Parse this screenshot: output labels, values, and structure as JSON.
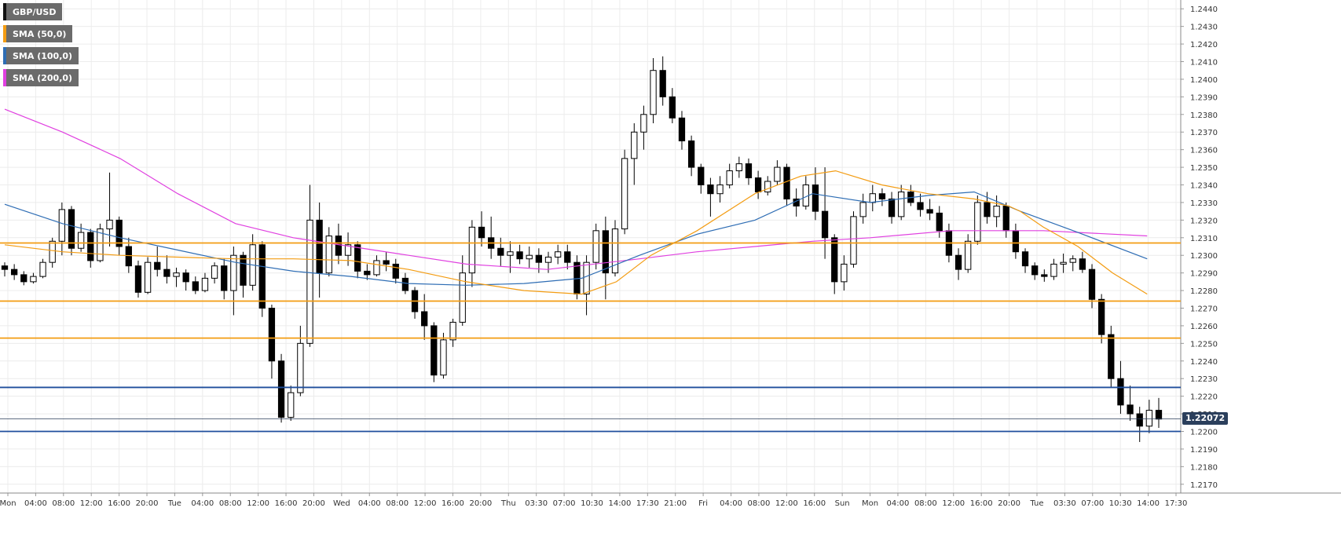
{
  "chart_data": {
    "type": "candlestick",
    "symbol": "GBP/USD",
    "legend": [
      {
        "label": "GBP/USD",
        "color": "#111111"
      },
      {
        "label": "SMA (50,0)",
        "color": "#f39c12"
      },
      {
        "label": "SMA (100,0)",
        "color": "#2e6db4"
      },
      {
        "label": "SMA (200,0)",
        "color": "#e040e0"
      }
    ],
    "ylim": [
      1.2165,
      1.2445
    ],
    "y_ticks": [
      "1.2170",
      "1.2180",
      "1.2190",
      "1.2200",
      "1.2210",
      "1.2220",
      "1.2230",
      "1.2240",
      "1.2250",
      "1.2260",
      "1.2270",
      "1.2280",
      "1.2290",
      "1.2300",
      "1.2310",
      "1.2320",
      "1.2330",
      "1.2340",
      "1.2350",
      "1.2360",
      "1.2370",
      "1.2380",
      "1.2390",
      "1.2400",
      "1.2410",
      "1.2420",
      "1.2430",
      "1.2440"
    ],
    "x_ticks": [
      "Mon",
      "04:00",
      "08:00",
      "12:00",
      "16:00",
      "20:00",
      "Tue",
      "04:00",
      "08:00",
      "12:00",
      "16:00",
      "20:00",
      "Wed",
      "04:00",
      "08:00",
      "12:00",
      "16:00",
      "20:00",
      "Thu",
      "03:30",
      "07:00",
      "10:30",
      "14:00",
      "17:30",
      "21:00",
      "Fri",
      "04:00",
      "08:00",
      "12:00",
      "16:00",
      "Sun",
      "Mon",
      "04:00",
      "08:00",
      "12:00",
      "16:00",
      "20:00",
      "Tue",
      "03:30",
      "07:00",
      "10:30",
      "14:00",
      "17:30"
    ],
    "current_price": "1.22072",
    "horizontal_levels": [
      {
        "value": 1.2307,
        "color": "#f39c12"
      },
      {
        "value": 1.2274,
        "color": "#f39c12"
      },
      {
        "value": 1.2253,
        "color": "#f39c12"
      },
      {
        "value": 1.2225,
        "color": "#1f4e9c"
      },
      {
        "value": 1.22,
        "color": "#1f4e9c"
      }
    ],
    "candles": [
      [
        1.2294,
        1.2296,
        1.2288,
        1.2292
      ],
      [
        1.2292,
        1.2295,
        1.2286,
        1.2289
      ],
      [
        1.2289,
        1.2291,
        1.2283,
        1.2285
      ],
      [
        1.2285,
        1.229,
        1.2284,
        1.2288
      ],
      [
        1.2288,
        1.2298,
        1.2287,
        1.2296
      ],
      [
        1.2296,
        1.231,
        1.2293,
        1.2308
      ],
      [
        1.2308,
        1.233,
        1.23,
        1.2326
      ],
      [
        1.2326,
        1.2328,
        1.23,
        1.2304
      ],
      [
        1.2304,
        1.2318,
        1.2302,
        1.2313
      ],
      [
        1.2313,
        1.2315,
        1.2293,
        1.2297
      ],
      [
        1.2297,
        1.2318,
        1.2296,
        1.2315
      ],
      [
        1.2315,
        1.2347,
        1.2305,
        1.232
      ],
      [
        1.232,
        1.2322,
        1.23,
        1.2305
      ],
      [
        1.2305,
        1.231,
        1.229,
        1.2294
      ],
      [
        1.2294,
        1.2297,
        1.2276,
        1.2279
      ],
      [
        1.2279,
        1.2299,
        1.2278,
        1.2296
      ],
      [
        1.2296,
        1.2305,
        1.2288,
        1.2292
      ],
      [
        1.2292,
        1.23,
        1.2284,
        1.2288
      ],
      [
        1.2288,
        1.2293,
        1.2282,
        1.229
      ],
      [
        1.229,
        1.2292,
        1.228,
        1.2285
      ],
      [
        1.2285,
        1.2288,
        1.2278,
        1.228
      ],
      [
        1.228,
        1.229,
        1.2279,
        1.2287
      ],
      [
        1.2287,
        1.2296,
        1.2284,
        1.2294
      ],
      [
        1.2294,
        1.2298,
        1.2275,
        1.228
      ],
      [
        1.228,
        1.2305,
        1.2266,
        1.23
      ],
      [
        1.23,
        1.2302,
        1.2276,
        1.2283
      ],
      [
        1.2283,
        1.2312,
        1.228,
        1.2306
      ],
      [
        1.2306,
        1.2308,
        1.2265,
        1.227
      ],
      [
        1.227,
        1.2272,
        1.223,
        1.224
      ],
      [
        1.224,
        1.2244,
        1.2205,
        1.2208
      ],
      [
        1.2208,
        1.2226,
        1.2206,
        1.2222
      ],
      [
        1.2222,
        1.226,
        1.222,
        1.225
      ],
      [
        1.225,
        1.234,
        1.2248,
        1.232
      ],
      [
        1.232,
        1.233,
        1.2276,
        1.229
      ],
      [
        1.229,
        1.2316,
        1.2288,
        1.2311
      ],
      [
        1.2311,
        1.2318,
        1.2295,
        1.23
      ],
      [
        1.23,
        1.2313,
        1.2294,
        1.2306
      ],
      [
        1.2306,
        1.2308,
        1.2287,
        1.2291
      ],
      [
        1.2291,
        1.2295,
        1.2286,
        1.2289
      ],
      [
        1.2289,
        1.23,
        1.2288,
        1.2297
      ],
      [
        1.2297,
        1.2302,
        1.2291,
        1.2295
      ],
      [
        1.2295,
        1.2298,
        1.2284,
        1.2287
      ],
      [
        1.2287,
        1.229,
        1.2278,
        1.228
      ],
      [
        1.228,
        1.2282,
        1.2264,
        1.2268
      ],
      [
        1.2268,
        1.2278,
        1.2252,
        1.226
      ],
      [
        1.226,
        1.2262,
        1.2228,
        1.2232
      ],
      [
        1.2232,
        1.2256,
        1.223,
        1.2252
      ],
      [
        1.2252,
        1.2264,
        1.2248,
        1.2262
      ],
      [
        1.2262,
        1.23,
        1.226,
        1.229
      ],
      [
        1.229,
        1.232,
        1.2282,
        1.2316
      ],
      [
        1.2316,
        1.2325,
        1.2305,
        1.231
      ],
      [
        1.231,
        1.2322,
        1.2298,
        1.2304
      ],
      [
        1.2304,
        1.231,
        1.2294,
        1.23
      ],
      [
        1.23,
        1.2308,
        1.229,
        1.2302
      ],
      [
        1.2302,
        1.2306,
        1.2295,
        1.2298
      ],
      [
        1.2298,
        1.2305,
        1.2293,
        1.23
      ],
      [
        1.23,
        1.2304,
        1.229,
        1.2296
      ],
      [
        1.2296,
        1.2302,
        1.229,
        1.2299
      ],
      [
        1.2299,
        1.2306,
        1.2295,
        1.2302
      ],
      [
        1.2302,
        1.2306,
        1.2292,
        1.2296
      ],
      [
        1.2296,
        1.23,
        1.2275,
        1.2278
      ],
      [
        1.2278,
        1.23,
        1.2266,
        1.2296
      ],
      [
        1.2296,
        1.2318,
        1.2292,
        1.2314
      ],
      [
        1.2314,
        1.2322,
        1.2275,
        1.229
      ],
      [
        1.229,
        1.232,
        1.2288,
        1.2315
      ],
      [
        1.2315,
        1.236,
        1.2312,
        1.2355
      ],
      [
        1.2355,
        1.2375,
        1.234,
        1.237
      ],
      [
        1.237,
        1.2385,
        1.236,
        1.238
      ],
      [
        1.238,
        1.2412,
        1.2375,
        1.2405
      ],
      [
        1.2405,
        1.2413,
        1.2385,
        1.239
      ],
      [
        1.239,
        1.2395,
        1.2375,
        1.2378
      ],
      [
        1.2378,
        1.2382,
        1.236,
        1.2365
      ],
      [
        1.2365,
        1.2368,
        1.2345,
        1.235
      ],
      [
        1.235,
        1.2352,
        1.2335,
        1.234
      ],
      [
        1.234,
        1.2344,
        1.2322,
        1.2335
      ],
      [
        1.2335,
        1.2345,
        1.233,
        1.234
      ],
      [
        1.234,
        1.2352,
        1.2338,
        1.2348
      ],
      [
        1.2348,
        1.2356,
        1.2344,
        1.2352
      ],
      [
        1.2352,
        1.2355,
        1.234,
        1.2344
      ],
      [
        1.2344,
        1.2348,
        1.2332,
        1.2336
      ],
      [
        1.2336,
        1.2345,
        1.2334,
        1.2342
      ],
      [
        1.2342,
        1.2354,
        1.234,
        1.235
      ],
      [
        1.235,
        1.2352,
        1.2328,
        1.2332
      ],
      [
        1.2332,
        1.2338,
        1.2322,
        1.2328
      ],
      [
        1.2328,
        1.2345,
        1.2326,
        1.234
      ],
      [
        1.234,
        1.235,
        1.232,
        1.2325
      ],
      [
        1.2325,
        1.235,
        1.2298,
        1.231
      ],
      [
        1.231,
        1.2312,
        1.2278,
        1.2285
      ],
      [
        1.2285,
        1.23,
        1.228,
        1.2295
      ],
      [
        1.2295,
        1.2325,
        1.2293,
        1.2322
      ],
      [
        1.2322,
        1.2335,
        1.2318,
        1.233
      ],
      [
        1.233,
        1.234,
        1.2325,
        1.2335
      ],
      [
        1.2335,
        1.2338,
        1.2328,
        1.2332
      ],
      [
        1.2332,
        1.2336,
        1.2318,
        1.2322
      ],
      [
        1.2322,
        1.234,
        1.232,
        1.2336
      ],
      [
        1.2336,
        1.234,
        1.2328,
        1.233
      ],
      [
        1.233,
        1.2335,
        1.2322,
        1.2326
      ],
      [
        1.2326,
        1.2332,
        1.232,
        1.2324
      ],
      [
        1.2324,
        1.2328,
        1.231,
        1.2314
      ],
      [
        1.2314,
        1.2318,
        1.2296,
        1.23
      ],
      [
        1.23,
        1.2304,
        1.2286,
        1.2292
      ],
      [
        1.2292,
        1.2312,
        1.229,
        1.2308
      ],
      [
        1.2308,
        1.2334,
        1.2306,
        1.233
      ],
      [
        1.233,
        1.2336,
        1.2318,
        1.2322
      ],
      [
        1.2322,
        1.2334,
        1.2316,
        1.2328
      ],
      [
        1.2328,
        1.233,
        1.231,
        1.2314
      ],
      [
        1.2314,
        1.2318,
        1.2298,
        1.2302
      ],
      [
        1.2302,
        1.2304,
        1.229,
        1.2294
      ],
      [
        1.2294,
        1.2296,
        1.2286,
        1.2289
      ],
      [
        1.2289,
        1.2292,
        1.2285,
        1.2288
      ],
      [
        1.2288,
        1.2298,
        1.2286,
        1.2295
      ],
      [
        1.2295,
        1.2301,
        1.229,
        1.2296
      ],
      [
        1.2296,
        1.23,
        1.2291,
        1.2298
      ],
      [
        1.2298,
        1.2302,
        1.229,
        1.2292
      ],
      [
        1.2292,
        1.2295,
        1.227,
        1.2275
      ],
      [
        1.2275,
        1.2278,
        1.225,
        1.2255
      ],
      [
        1.2255,
        1.226,
        1.2225,
        1.223
      ],
      [
        1.223,
        1.224,
        1.221,
        1.2215
      ],
      [
        1.2215,
        1.2226,
        1.2206,
        1.221
      ],
      [
        1.221,
        1.2214,
        1.2194,
        1.2203
      ],
      [
        1.2203,
        1.2218,
        1.2199,
        1.2212
      ],
      [
        1.2212,
        1.2219,
        1.2202,
        1.2207
      ]
    ],
    "sma50": [
      1.2306,
      1.2302,
      1.23,
      1.2299,
      1.2298,
      1.2298,
      1.2297,
      1.2292,
      1.2285,
      1.228,
      1.2278,
      1.2285,
      1.23,
      1.2314,
      1.2335,
      1.2345,
      1.2348,
      1.234,
      1.2335,
      1.2332,
      1.2328,
      1.2325,
      1.2316,
      1.2305,
      1.229,
      1.2278
    ],
    "sma50_x": [
      0,
      0.05,
      0.1,
      0.15,
      0.2,
      0.25,
      0.3,
      0.35,
      0.4,
      0.45,
      0.5,
      0.53,
      0.56,
      0.6,
      0.65,
      0.69,
      0.72,
      0.76,
      0.8,
      0.84,
      0.87,
      0.88,
      0.9,
      0.93,
      0.96,
      0.99
    ],
    "sma100": [
      1.2329,
      1.2318,
      1.231,
      1.2303,
      1.2296,
      1.2291,
      1.2288,
      1.2284,
      1.2283,
      1.2284,
      1.2287,
      1.23,
      1.2312,
      1.232,
      1.2335,
      1.233,
      1.2334,
      1.2336,
      1.2325,
      1.2313,
      1.2298
    ],
    "sma100_x": [
      0,
      0.05,
      0.1,
      0.15,
      0.2,
      0.25,
      0.3,
      0.35,
      0.4,
      0.45,
      0.5,
      0.55,
      0.6,
      0.65,
      0.7,
      0.75,
      0.8,
      0.84,
      0.88,
      0.93,
      0.99
    ],
    "sma200": [
      1.2383,
      1.237,
      1.2355,
      1.2335,
      1.2318,
      1.231,
      1.2305,
      1.23,
      1.2295,
      1.2292,
      1.2298,
      1.2302,
      1.2305,
      1.2308,
      1.231,
      1.2314,
      1.2314,
      1.2311
    ],
    "sma200_x": [
      0,
      0.05,
      0.1,
      0.15,
      0.2,
      0.25,
      0.3,
      0.35,
      0.4,
      0.47,
      0.55,
      0.6,
      0.65,
      0.7,
      0.75,
      0.82,
      0.9,
      0.99
    ]
  }
}
